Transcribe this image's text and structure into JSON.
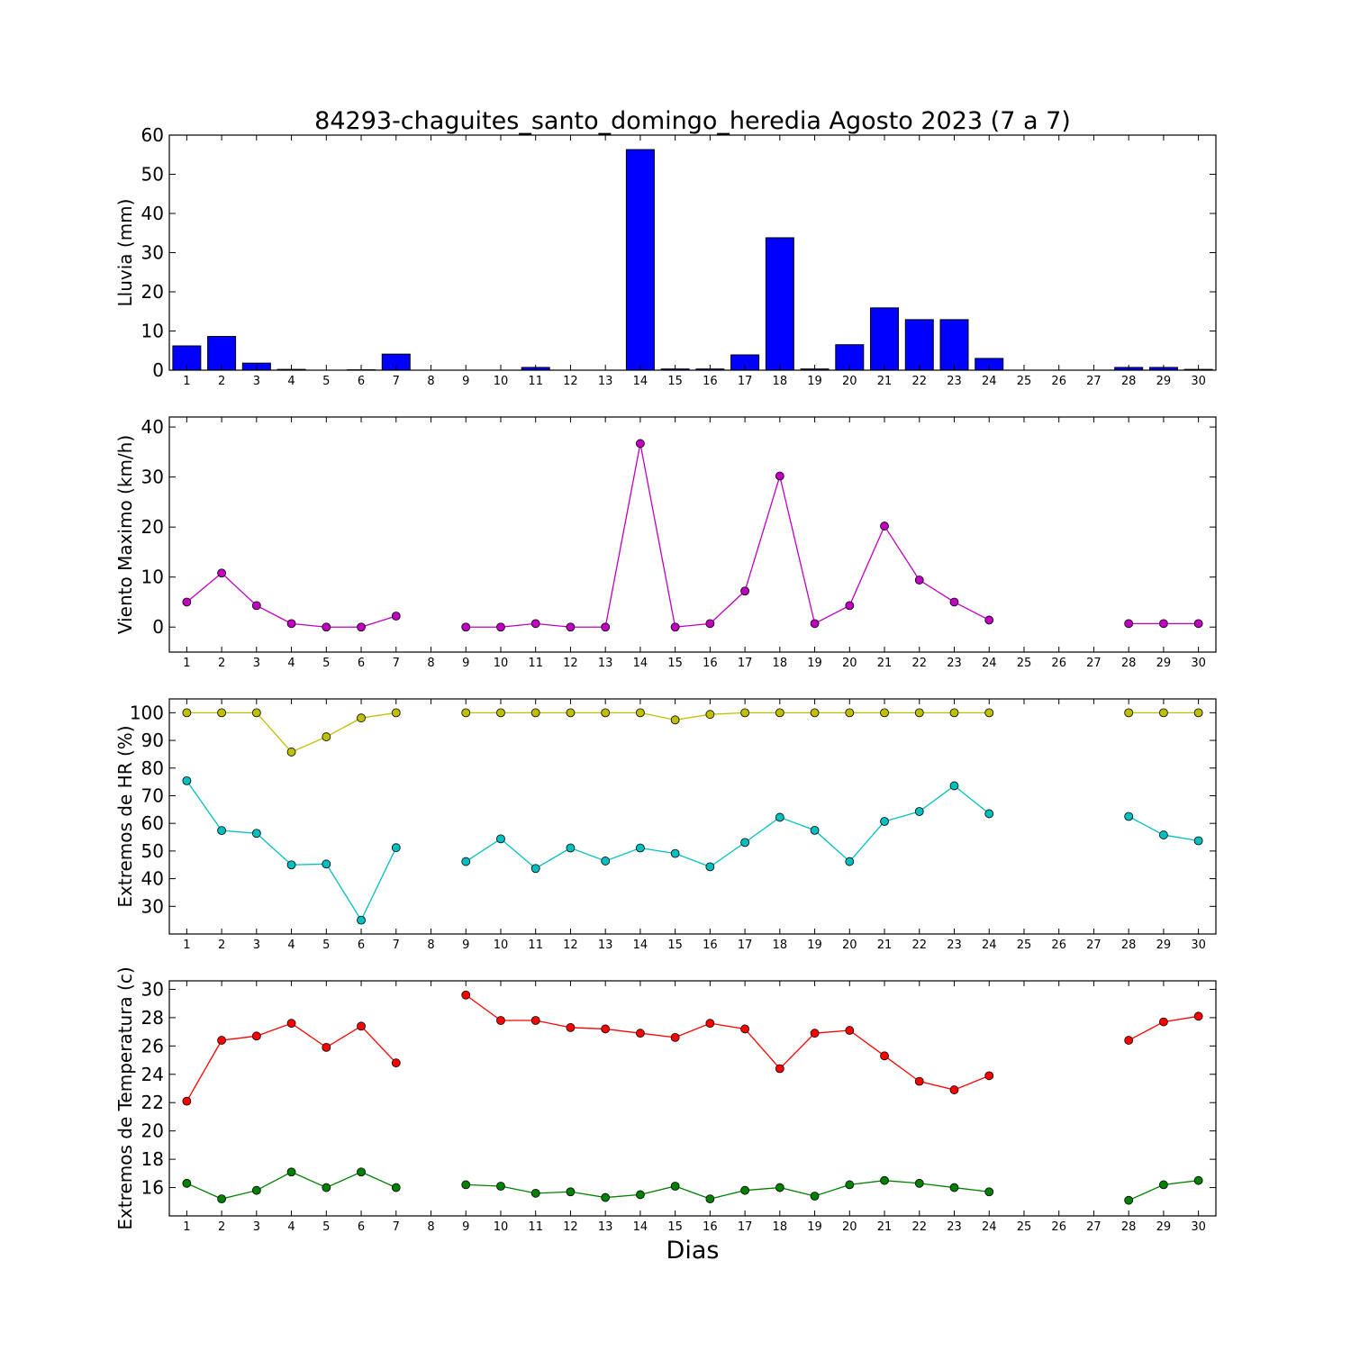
{
  "chart_data": {
    "title": "84293-chaguites_santo_domingo_heredia Agosto 2023  (7 a 7)",
    "xlabel": "Dias",
    "days": [
      1,
      2,
      3,
      4,
      5,
      6,
      7,
      8,
      9,
      10,
      11,
      12,
      13,
      14,
      15,
      16,
      17,
      18,
      19,
      20,
      21,
      22,
      23,
      24,
      25,
      26,
      27,
      28,
      29,
      30
    ],
    "panels": [
      {
        "type": "bar",
        "ylabel": "Lluvia (mm)",
        "ylim": [
          0,
          60
        ],
        "yticks": [
          0,
          10,
          20,
          30,
          40,
          50,
          60
        ],
        "series": [
          {
            "color": "#0000ff",
            "values": [
              6.2,
              8.6,
              1.8,
              0.2,
              0,
              0.1,
              4.1,
              0,
              0,
              0,
              0.7,
              0,
              0,
              56.3,
              0.3,
              0.3,
              3.9,
              33.8,
              0.3,
              6.5,
              15.9,
              12.9,
              12.9,
              3.0,
              0,
              0,
              0,
              0.7,
              0.7,
              0.2
            ]
          }
        ]
      },
      {
        "type": "line",
        "ylabel": "Viento Maximo (km/h)",
        "ylim": [
          -5,
          42
        ],
        "yticks": [
          0,
          10,
          20,
          30,
          40
        ],
        "series": [
          {
            "color": "#bf00bf",
            "values": [
              5.0,
              10.8,
              4.3,
              0.7,
              0,
              0,
              2.2,
              null,
              0,
              0,
              0.7,
              0,
              0,
              36.7,
              0,
              0.7,
              7.2,
              30.2,
              0.7,
              4.3,
              20.2,
              9.4,
              5.0,
              1.4,
              null,
              null,
              null,
              0.7,
              0.7,
              0.7
            ]
          }
        ]
      },
      {
        "type": "line",
        "ylabel": "Extremos de HR (%)",
        "ylim": [
          20,
          105
        ],
        "yticks": [
          30,
          40,
          50,
          60,
          70,
          80,
          90,
          100
        ],
        "series": [
          {
            "color": "#bfbf00",
            "values": [
              100,
              100,
              100,
              85.8,
              91.3,
              98.1,
              100,
              null,
              100,
              100,
              100,
              100,
              100,
              100,
              97.4,
              99.4,
              100,
              100,
              100,
              100,
              100,
              100,
              100,
              100,
              null,
              null,
              null,
              100,
              100,
              100
            ]
          },
          {
            "color": "#00bfbf",
            "values": [
              75.4,
              57.4,
              56.4,
              45.0,
              45.3,
              25.0,
              51.2,
              null,
              46.2,
              54.4,
              43.7,
              51.1,
              46.4,
              51.1,
              49.1,
              44.3,
              53.1,
              62.2,
              57.5,
              46.2,
              60.7,
              64.3,
              73.6,
              63.5,
              null,
              null,
              null,
              62.5,
              55.8,
              53.7
            ]
          }
        ]
      },
      {
        "type": "line",
        "ylabel": "Extremos de Temperatura (c)",
        "ylim": [
          14,
          30.6
        ],
        "yticks": [
          16,
          18,
          20,
          22,
          24,
          26,
          28,
          30
        ],
        "series": [
          {
            "color": "#ff0000",
            "values": [
              22.1,
              26.4,
              26.7,
              27.6,
              25.9,
              27.4,
              24.8,
              null,
              29.6,
              27.8,
              27.8,
              27.3,
              27.2,
              26.9,
              26.6,
              27.6,
              27.2,
              24.4,
              26.9,
              27.1,
              25.3,
              23.5,
              22.9,
              23.9,
              null,
              null,
              null,
              26.4,
              27.7,
              28.1
            ]
          },
          {
            "color": "#008000",
            "values": [
              16.3,
              15.2,
              15.8,
              17.1,
              16.0,
              17.1,
              16.0,
              null,
              16.2,
              16.1,
              15.6,
              15.7,
              15.3,
              15.5,
              16.1,
              15.2,
              15.8,
              16.0,
              15.4,
              16.2,
              16.5,
              16.3,
              16.0,
              15.7,
              null,
              null,
              null,
              15.1,
              16.2,
              16.5
            ]
          }
        ]
      }
    ]
  }
}
